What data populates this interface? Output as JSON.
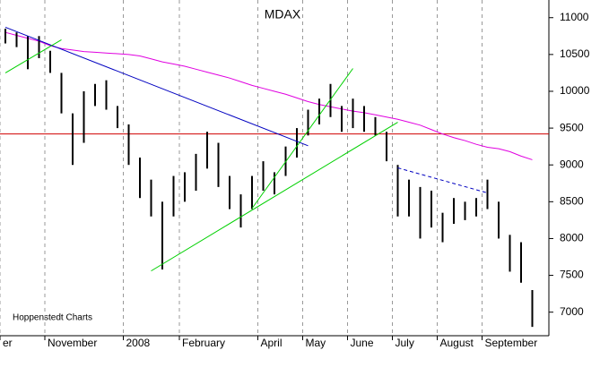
{
  "chart_data": {
    "type": "range",
    "title": "MDAX",
    "source": "Hoppenstedt Charts",
    "categories": [
      "er",
      null,
      null,
      null,
      "November",
      null,
      null,
      null,
      null,
      null,
      null,
      "2008",
      null,
      null,
      null,
      null,
      "February",
      null,
      null,
      null,
      null,
      null,
      null,
      "April",
      null,
      null,
      null,
      "May",
      null,
      null,
      null,
      "June",
      null,
      null,
      null,
      "July",
      null,
      null,
      null,
      "August",
      null,
      null,
      null,
      "September",
      null,
      null,
      null,
      null
    ],
    "high": [
      10850,
      10800,
      10750,
      10750,
      10550,
      10250,
      9700,
      10000,
      10100,
      10150,
      9800,
      9550,
      9100,
      8800,
      8500,
      8850,
      8900,
      9150,
      9450,
      9300,
      8850,
      8600,
      8850,
      9050,
      8900,
      9250,
      9500,
      9750,
      9900,
      10100,
      9800,
      9900,
      9800,
      9650,
      9450,
      9000,
      8800,
      8700,
      8650,
      8350,
      8550,
      8500,
      8550,
      8800,
      8500,
      8050,
      7950,
      7300
    ],
    "low": [
      10650,
      10600,
      10300,
      10450,
      10250,
      9700,
      9000,
      9300,
      9800,
      9750,
      9500,
      9000,
      8550,
      8300,
      7580,
      8300,
      8500,
      8650,
      8950,
      8700,
      8400,
      8150,
      8400,
      8650,
      8600,
      8850,
      9100,
      9400,
      9550,
      9650,
      9450,
      9500,
      9450,
      9400,
      9050,
      8300,
      8300,
      8000,
      8150,
      7950,
      8200,
      8250,
      8300,
      8400,
      8000,
      7550,
      7400,
      6800
    ],
    "color": "#000000",
    "moving_average": {
      "color": "#e000e0",
      "values": [
        10800,
        10760,
        10720,
        10680,
        10620,
        10580,
        10560,
        10540,
        10530,
        10520,
        10510,
        10500,
        10480,
        10440,
        10400,
        10370,
        10340,
        10300,
        10260,
        10220,
        10180,
        10130,
        10080,
        10040,
        10000,
        9960,
        9910,
        9860,
        9820,
        9790,
        9760,
        9730,
        9710,
        9680,
        9650,
        9620,
        9580,
        9540,
        9480,
        9420,
        9370,
        9330,
        9280,
        9240,
        9220,
        9180,
        9120,
        9070
      ]
    },
    "reference_line": {
      "value": 9420,
      "color": "#d00000"
    },
    "trendlines": [
      {
        "color": "#0000c0",
        "dashed": false,
        "from": [
          0,
          10870
        ],
        "to": [
          27,
          9260
        ]
      },
      {
        "color": "#00d000",
        "dashed": false,
        "from": [
          0,
          10250
        ],
        "to": [
          5,
          10700
        ]
      },
      {
        "color": "#00d000",
        "dashed": false,
        "from": [
          13,
          7560
        ],
        "to": [
          35,
          9580
        ]
      },
      {
        "color": "#00d000",
        "dashed": false,
        "from": [
          22,
          8410
        ],
        "to": [
          31,
          10310
        ]
      },
      {
        "color": "#0000c0",
        "dashed": true,
        "from": [
          35,
          8960
        ],
        "to": [
          43,
          8620
        ]
      }
    ],
    "ylim": [
      6680,
      11240
    ],
    "yticks": [
      7000,
      7500,
      8000,
      8500,
      9000,
      9500,
      10000,
      10500,
      11000
    ]
  }
}
